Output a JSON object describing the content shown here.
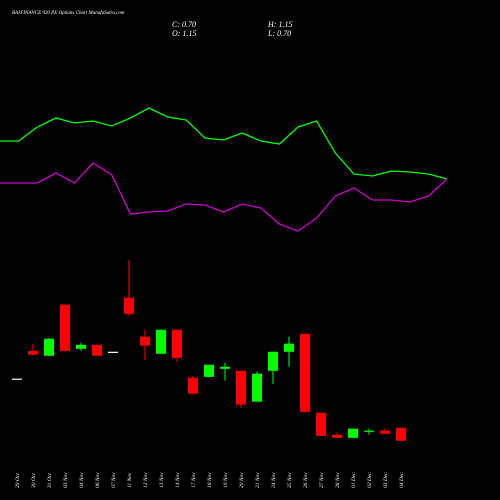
{
  "chart_data": {
    "type": "candlestick",
    "title": "BAJFINANCE 920 PE Options Chart MunafaSutra.com",
    "stats": [
      "C: 0.70",
      "H: 1.15",
      "O: 1.15",
      "L: 0.70"
    ],
    "categories": [
      "29 Oct",
      "30 Oct",
      "31 Oct",
      "03 Nov",
      "04 Nov",
      "06 Nov",
      "07 Nov",
      "11 Nov",
      "12 Nov",
      "13 Nov",
      "14 Nov",
      "17 Nov",
      "18 Nov",
      "19 Nov",
      "20 Nov",
      "21 Nov",
      "24 Nov",
      "25 Nov",
      "26 Nov",
      "27 Nov",
      "28 Nov",
      "01 Dec",
      "02 Dec",
      "03 Dec",
      "04 Dec"
    ],
    "open": [
      2.85,
      3.81,
      3.64,
      5.41,
      3.88,
      4.02,
      3.78,
      5.65,
      4.3,
      3.71,
      4.54,
      2.88,
      2.91,
      3.19,
      3.12,
      2.05,
      3.12,
      3.78,
      4.4,
      1.67,
      0.91,
      0.8,
      1.01,
      1.05,
      1.15
    ],
    "high": [
      2.85,
      4.06,
      4.26,
      5.41,
      4.09,
      4.02,
      3.78,
      6.96,
      4.54,
      4.54,
      4.54,
      2.95,
      3.33,
      3.4,
      3.12,
      3.09,
      3.78,
      4.3,
      4.4,
      1.67,
      0.98,
      1.12,
      1.12,
      1.12,
      1.15
    ],
    "low": [
      2.85,
      3.64,
      3.64,
      3.78,
      3.81,
      3.64,
      3.78,
      5.03,
      3.5,
      3.71,
      3.43,
      2.29,
      2.91,
      2.78,
      1.84,
      2.05,
      2.67,
      3.26,
      1.67,
      0.87,
      0.8,
      0.8,
      0.91,
      0.94,
      0.7
    ],
    "close": [
      2.85,
      3.68,
      4.23,
      3.81,
      4.02,
      3.64,
      3.78,
      5.09,
      3.99,
      4.54,
      3.57,
      2.33,
      3.33,
      3.26,
      1.95,
      3.02,
      3.78,
      4.06,
      1.7,
      0.87,
      0.8,
      1.12,
      1.05,
      0.94,
      0.7
    ],
    "ylim": [
      0,
      7.3
    ],
    "up_color": "#00ff00",
    "down_color": "#ff0000",
    "flat_color": "#ffffff",
    "lines": {
      "ylim": [
        0,
        300
      ],
      "series": [
        {
          "color": "#00ff00",
          "values": [
            159,
            159,
            173,
            182,
            177,
            179,
            174,
            182,
            192,
            183,
            180,
            162,
            160,
            167,
            159,
            156,
            173,
            179,
            147,
            126,
            124,
            129,
            128,
            126,
            121
          ]
        },
        {
          "color": "#cc00cc",
          "values": [
            117,
            117,
            117,
            127,
            117,
            137,
            125,
            86,
            88,
            89,
            96,
            95,
            88,
            96,
            92,
            76,
            69,
            82,
            104,
            112,
            100,
            100,
            98,
            104,
            121
          ]
        }
      ]
    }
  }
}
